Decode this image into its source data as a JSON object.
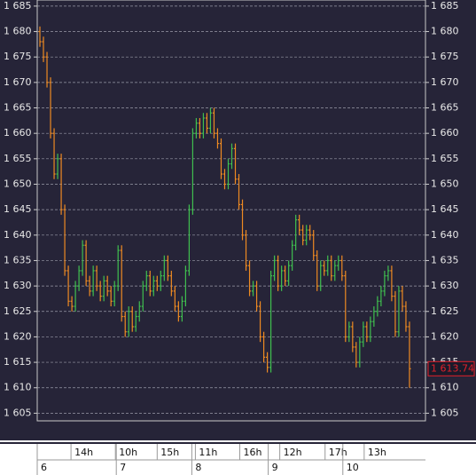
{
  "chart_data": {
    "type": "ohlc",
    "open": [
      1680,
      1678,
      1675,
      1670,
      1660,
      1652,
      1655,
      1645,
      1633,
      1627,
      1626,
      1630,
      1633,
      1638,
      1631,
      1629,
      1633,
      1630,
      1628,
      1631,
      1629,
      1627,
      1630,
      1637,
      1624,
      1621,
      1625,
      1622,
      1624,
      1626,
      1630,
      1632,
      1629,
      1631,
      1630,
      1632,
      1635,
      1632,
      1629,
      1626,
      1624,
      1627,
      1633,
      1645,
      1660,
      1662,
      1660,
      1663,
      1661,
      1664,
      1660,
      1658,
      1652,
      1650,
      1654,
      1657,
      1651,
      1646,
      1640,
      1634,
      1629,
      1630,
      1626,
      1620,
      1616,
      1614,
      1632,
      1635,
      1630,
      1633,
      1631,
      1634,
      1638,
      1643,
      1641,
      1639,
      1641,
      1640,
      1636,
      1630,
      1634,
      1633,
      1635,
      1632,
      1634,
      1635,
      1632,
      1620,
      1622,
      1618,
      1615,
      1619,
      1622,
      1620,
      1623,
      1625,
      1627,
      1629,
      1632,
      1633,
      1628,
      1621,
      1629,
      1626,
      1622
    ],
    "high": [
      1681,
      1679,
      1676,
      1671,
      1661,
      1656,
      1656,
      1646,
      1634,
      1628,
      1631,
      1634,
      1639,
      1639,
      1632,
      1634,
      1634,
      1631,
      1632,
      1632,
      1630,
      1631,
      1638,
      1638,
      1625,
      1626,
      1626,
      1625,
      1627,
      1631,
      1633,
      1633,
      1632,
      1632,
      1633,
      1636,
      1636,
      1633,
      1630,
      1627,
      1628,
      1634,
      1646,
      1661,
      1663,
      1663,
      1664,
      1664,
      1665,
      1665,
      1661,
      1659,
      1653,
      1655,
      1658,
      1658,
      1652,
      1647,
      1641,
      1635,
      1631,
      1631,
      1627,
      1621,
      1617,
      1633,
      1636,
      1636,
      1634,
      1634,
      1635,
      1639,
      1644,
      1644,
      1642,
      1642,
      1642,
      1641,
      1637,
      1635,
      1635,
      1636,
      1636,
      1635,
      1636,
      1636,
      1633,
      1623,
      1623,
      1619,
      1620,
      1623,
      1623,
      1624,
      1626,
      1628,
      1630,
      1633,
      1634,
      1634,
      1629,
      1630,
      1630,
      1627,
      1623
    ],
    "low": [
      1677,
      1674,
      1669,
      1659,
      1651,
      1651,
      1644,
      1632,
      1626,
      1625,
      1625,
      1629,
      1632,
      1630,
      1628,
      1628,
      1629,
      1627,
      1627,
      1628,
      1626,
      1626,
      1629,
      1623,
      1620,
      1620,
      1621,
      1621,
      1623,
      1625,
      1629,
      1628,
      1628,
      1629,
      1629,
      1631,
      1631,
      1628,
      1625,
      1623,
      1623,
      1626,
      1632,
      1644,
      1659,
      1659,
      1659,
      1660,
      1660,
      1659,
      1657,
      1651,
      1649,
      1649,
      1653,
      1650,
      1645,
      1639,
      1633,
      1628,
      1628,
      1625,
      1619,
      1615,
      1613,
      1613,
      1631,
      1629,
      1629,
      1630,
      1630,
      1633,
      1637,
      1640,
      1638,
      1638,
      1639,
      1635,
      1629,
      1629,
      1632,
      1632,
      1631,
      1631,
      1633,
      1631,
      1619,
      1619,
      1617,
      1614,
      1614,
      1618,
      1619,
      1619,
      1622,
      1624,
      1626,
      1628,
      1631,
      1627,
      1620,
      1620,
      1625,
      1621,
      1610
    ],
    "close": [
      1678,
      1675,
      1670,
      1660,
      1652,
      1655,
      1645,
      1633,
      1627,
      1626,
      1630,
      1633,
      1638,
      1631,
      1629,
      1633,
      1630,
      1628,
      1631,
      1629,
      1627,
      1630,
      1637,
      1624,
      1621,
      1625,
      1622,
      1624,
      1626,
      1630,
      1632,
      1629,
      1631,
      1630,
      1632,
      1635,
      1632,
      1629,
      1626,
      1624,
      1627,
      1633,
      1645,
      1660,
      1662,
      1660,
      1663,
      1661,
      1664,
      1660,
      1658,
      1652,
      1650,
      1654,
      1657,
      1651,
      1646,
      1640,
      1634,
      1629,
      1630,
      1626,
      1620,
      1616,
      1614,
      1632,
      1635,
      1630,
      1633,
      1631,
      1634,
      1638,
      1643,
      1641,
      1639,
      1641,
      1640,
      1636,
      1630,
      1634,
      1633,
      1635,
      1632,
      1634,
      1635,
      1632,
      1620,
      1622,
      1618,
      1615,
      1619,
      1622,
      1620,
      1623,
      1625,
      1627,
      1629,
      1632,
      1633,
      1628,
      1621,
      1629,
      1626,
      1622,
      1613.74
    ],
    "up_color": "#3fbf4f",
    "down_color": "#ee8a22",
    "ylim": [
      1603.5,
      1686.2
    ],
    "yticks": [
      {
        "value": 1605,
        "label": "1 605"
      },
      {
        "value": 1610,
        "label": "1 610"
      },
      {
        "value": 1615,
        "label": "1 615"
      },
      {
        "value": 1620,
        "label": "1 620"
      },
      {
        "value": 1625,
        "label": "1 625"
      },
      {
        "value": 1630,
        "label": "1 630"
      },
      {
        "value": 1635,
        "label": "1 635"
      },
      {
        "value": 1640,
        "label": "1 640"
      },
      {
        "value": 1645,
        "label": "1 645"
      },
      {
        "value": 1650,
        "label": "1 650"
      },
      {
        "value": 1655,
        "label": "1 655"
      },
      {
        "value": 1660,
        "label": "1 660"
      },
      {
        "value": 1665,
        "label": "1 665"
      },
      {
        "value": 1670,
        "label": "1 670"
      },
      {
        "value": 1675,
        "label": "1 675"
      },
      {
        "value": 1680,
        "label": "1 680"
      },
      {
        "value": 1685,
        "label": "1 685"
      }
    ],
    "grid": true,
    "xlim": [
      -0.25,
      109
    ],
    "xticks": [
      {
        "value": 9.25,
        "label": "14h"
      },
      {
        "value": 21.75,
        "label": "10h"
      },
      {
        "value": 33.5,
        "label": "15h"
      },
      {
        "value": 44.25,
        "label": "11h"
      },
      {
        "value": 56.75,
        "label": "16h"
      },
      {
        "value": 68,
        "label": "12h"
      },
      {
        "value": 80.75,
        "label": "17h"
      },
      {
        "value": 91.75,
        "label": "13h"
      }
    ],
    "xticks2": [
      {
        "value": -0.25,
        "label": "6"
      },
      {
        "value": 22,
        "label": "7"
      },
      {
        "value": 43.25,
        "label": "8"
      },
      {
        "value": 64.75,
        "label": "9"
      },
      {
        "value": 85.75,
        "label": "10"
      }
    ],
    "last_price": {
      "value": 1613.74,
      "label": "1 613.74",
      "color": "#e0202a"
    }
  }
}
